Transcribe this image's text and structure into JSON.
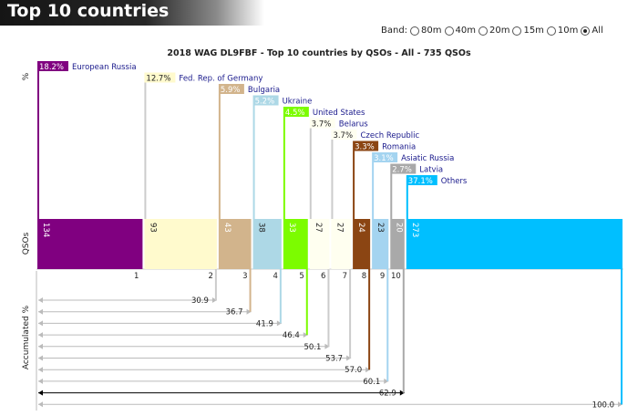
{
  "header": {
    "title": "Top 10 countries"
  },
  "band_filter": {
    "label": "Band:",
    "options": [
      {
        "label": "80m",
        "checked": false
      },
      {
        "label": "40m",
        "checked": false
      },
      {
        "label": "20m",
        "checked": false
      },
      {
        "label": "15m",
        "checked": false
      },
      {
        "label": "10m",
        "checked": false
      },
      {
        "label": "All",
        "checked": true
      }
    ]
  },
  "chart_data": {
    "type": "bar",
    "title": "2018 WAG DL9FBF - Top 10 countries by QSOs - All - 735 QSOs",
    "row_labels": {
      "percent": "%",
      "qsos": "QSOs",
      "accumulated": "Accumulated %"
    },
    "categories": [
      "European Russia",
      "Fed. Rep. of Germany",
      "Bulgaria",
      "Ukraine",
      "United States",
      "Belarus",
      "Czech Republic",
      "Romania",
      "Asiatic Russia",
      "Latvia",
      "Others"
    ],
    "ranks": [
      "1",
      "2",
      "3",
      "4",
      "5",
      "6",
      "7",
      "8",
      "9",
      "10",
      ""
    ],
    "qsos": [
      134,
      93,
      43,
      38,
      33,
      27,
      27,
      24,
      23,
      20,
      273
    ],
    "percent_labels": [
      "18.2%",
      "12.7%",
      "5.9%",
      "5.2%",
      "4.5%",
      "3.7%",
      "3.7%",
      "3.3%",
      "3.1%",
      "2.7%",
      "37.1%"
    ],
    "accumulated": [
      18.2,
      30.9,
      36.7,
      41.9,
      46.4,
      50.1,
      53.7,
      57.0,
      60.1,
      62.9,
      100.0
    ],
    "accumulated_labels": [
      "",
      "30.9",
      "36.7",
      "41.9",
      "46.4",
      "50.1",
      "53.7",
      "57.0",
      "60.1",
      "62.9",
      "100.0"
    ],
    "colors": [
      "#800080",
      "#fffacd",
      "#d2b48c",
      "#add8e6",
      "#7cfc00",
      "#fffff0",
      "#fffff0",
      "#8b4513",
      "#a4d4f0",
      "#a9a9a9",
      "#00bfff"
    ]
  }
}
